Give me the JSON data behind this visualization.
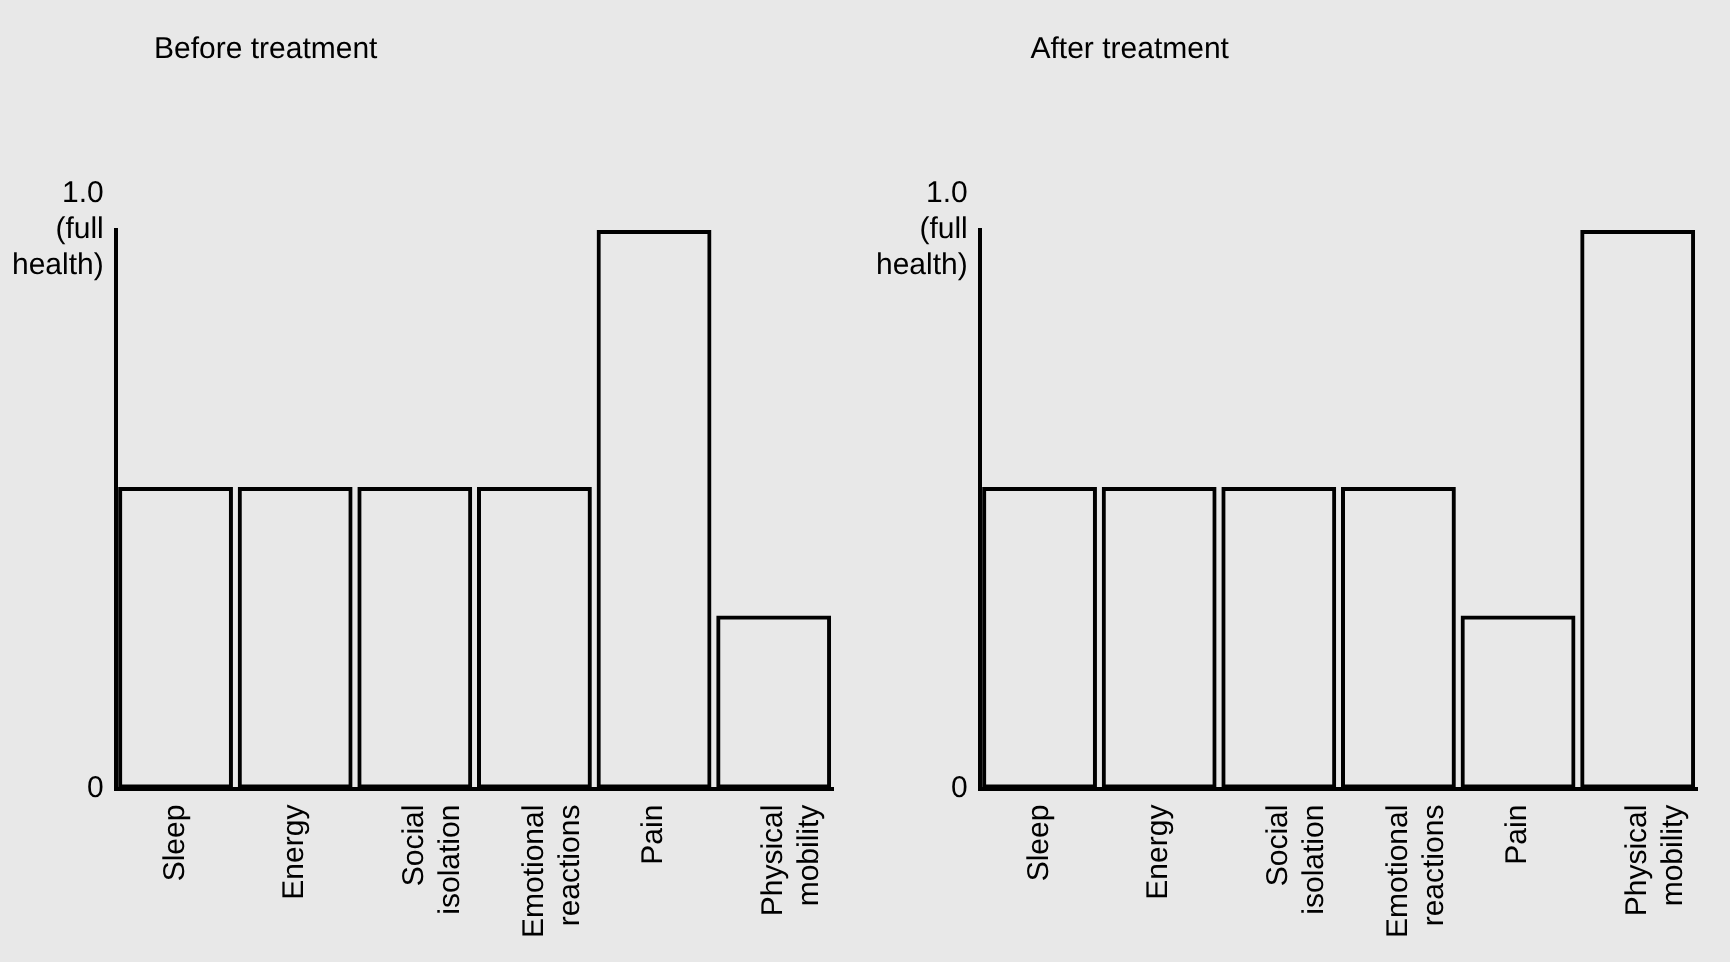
{
  "chart_data": [
    {
      "type": "bar",
      "title": "Before treatment",
      "categories": [
        "Sleep",
        "Energy",
        "Social isolation",
        "Emotional reactions",
        "Pain",
        "Physical mobility"
      ],
      "values": [
        0.54,
        0.54,
        0.54,
        0.54,
        1.0,
        0.31
      ],
      "color": "#000000",
      "ylim": [
        0,
        1
      ],
      "yticks": [
        0,
        {
          "value": 1,
          "label": "1.0 (full health)"
        }
      ],
      "grid": false,
      "legend": false
    },
    {
      "type": "bar",
      "title": "After treatment",
      "categories": [
        "Sleep",
        "Energy",
        "Social isolation",
        "Emotional reactions",
        "Pain",
        "Physical mobility"
      ],
      "values": [
        0.54,
        0.54,
        0.54,
        0.54,
        0.31,
        1.0
      ],
      "color": "#000000",
      "ylim": [
        0,
        1
      ],
      "yticks": [
        0,
        {
          "value": 1,
          "label": "1.0 (full health)"
        }
      ],
      "grid": false,
      "legend": false
    }
  ]
}
